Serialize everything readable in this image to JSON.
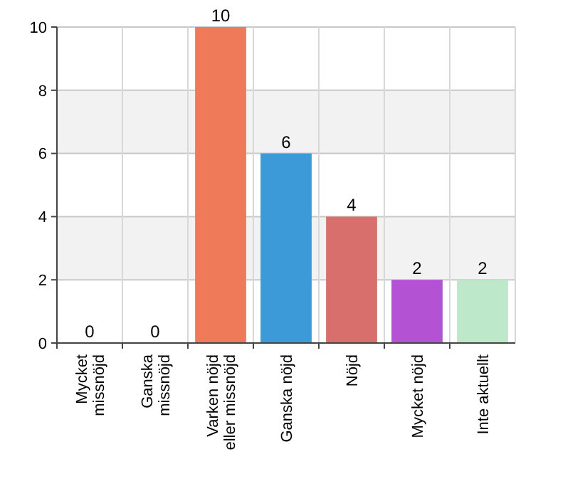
{
  "chart_data": {
    "type": "bar",
    "categories": [
      "Mycket missnöjd",
      "Ganska missnöjd",
      "Varken nöjd eller missnöjd",
      "Ganska nöjd",
      "Nöjd",
      "Mycket nöjd",
      "Inte aktuellt"
    ],
    "values": [
      0,
      0,
      10,
      6,
      4,
      2,
      2
    ],
    "colors": [
      "#e8704f",
      "#e8704f",
      "#ee7a5a",
      "#3c9ad8",
      "#d86f6c",
      "#b452d4",
      "#bde8c9"
    ],
    "ylim": [
      0,
      10
    ],
    "yticks": [
      0,
      2,
      4,
      6,
      8,
      10
    ],
    "grid": true,
    "data_labels": true
  }
}
